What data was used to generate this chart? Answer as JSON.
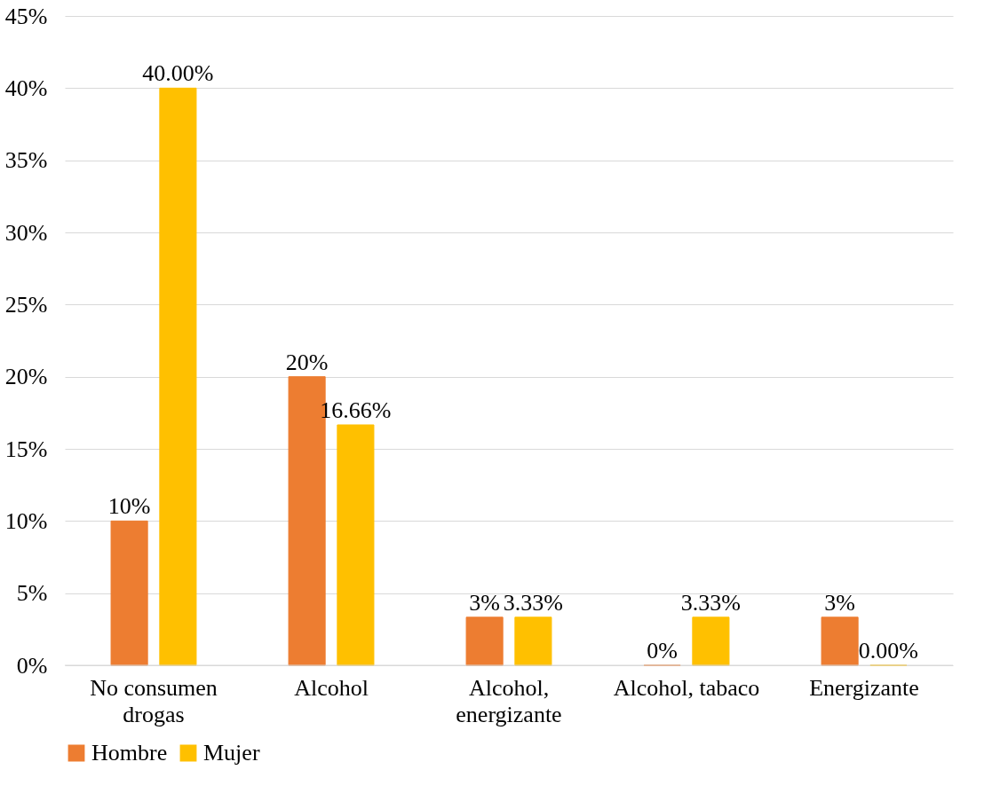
{
  "chart_data": {
    "type": "bar",
    "categories": [
      "No consumen\ndrogas",
      "Alcohol",
      "Alcohol,\nenergizante",
      "Alcohol, tabaco",
      "Energizante"
    ],
    "series": [
      {
        "name": "Hombre",
        "color": "#ed7d31",
        "values": [
          10,
          20,
          3.33,
          0,
          3.33
        ],
        "value_labels": [
          "10%",
          "20%",
          "3%",
          "0%",
          "3%"
        ]
      },
      {
        "name": "Mujer",
        "color": "#ffc000",
        "values": [
          40,
          16.66,
          3.33,
          3.33,
          0
        ],
        "value_labels": [
          "40.00%",
          "16.66%",
          "3.33%",
          "3.33%",
          "0.00%"
        ]
      }
    ],
    "ylim": [
      0,
      45
    ],
    "yticks": [
      {
        "value": 0,
        "label": "0%"
      },
      {
        "value": 5,
        "label": "5%"
      },
      {
        "value": 10,
        "label": "10%"
      },
      {
        "value": 15,
        "label": "15%"
      },
      {
        "value": 20,
        "label": "20%"
      },
      {
        "value": 25,
        "label": "25%"
      },
      {
        "value": 30,
        "label": "30%"
      },
      {
        "value": 35,
        "label": "35%"
      },
      {
        "value": 40,
        "label": "40%"
      },
      {
        "value": 45,
        "label": "45%"
      }
    ],
    "grid": "y",
    "legend": "bottom"
  }
}
